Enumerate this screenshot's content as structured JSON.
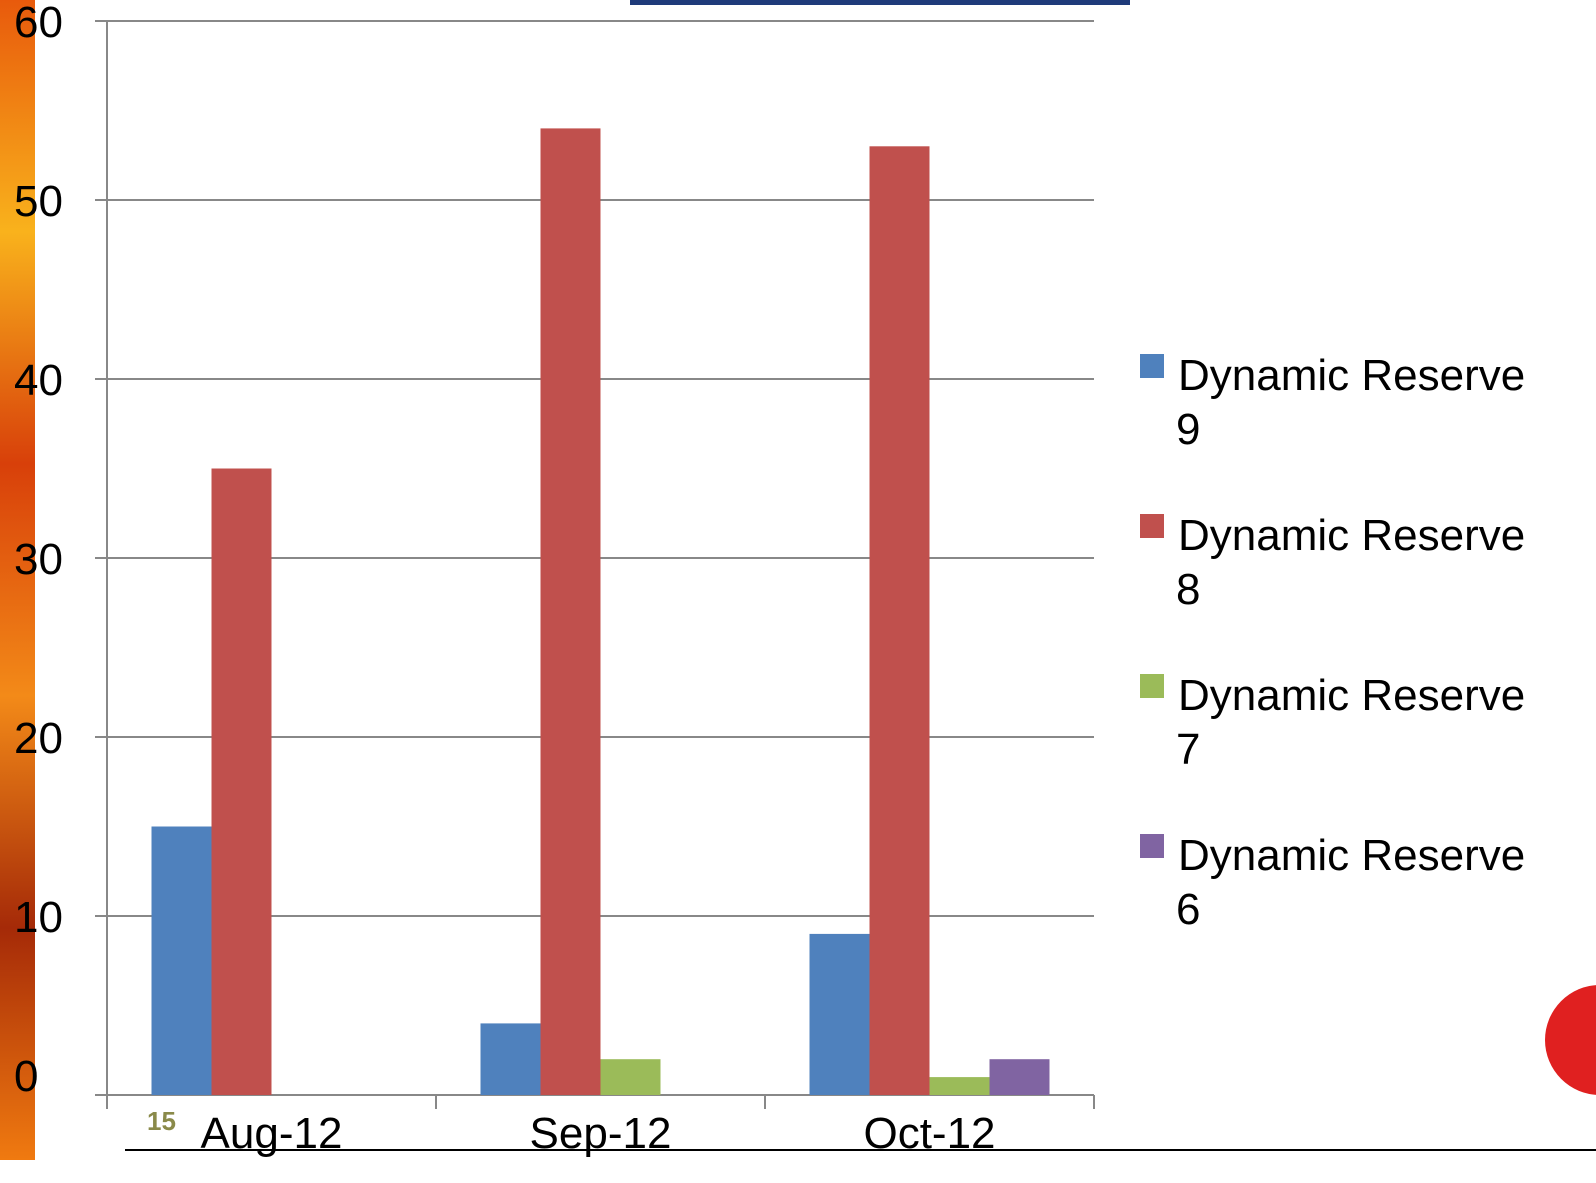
{
  "slide_number": "15",
  "chart_data": {
    "type": "bar",
    "categories": [
      "Aug-12",
      "Sep-12",
      "Oct-12"
    ],
    "series": [
      {
        "name": "Dynamic Reserve 9",
        "color": "#4f81bd",
        "values": [
          15,
          4,
          9
        ]
      },
      {
        "name": "Dynamic Reserve 8",
        "color": "#c0504d",
        "values": [
          35,
          54,
          53
        ]
      },
      {
        "name": "Dynamic Reserve 7",
        "color": "#9bbb59",
        "values": [
          0,
          2,
          1
        ]
      },
      {
        "name": "Dynamic Reserve 6",
        "color": "#8064a2",
        "values": [
          0,
          0,
          2
        ]
      }
    ],
    "ylim": [
      0,
      60
    ],
    "yticks": [
      0,
      10,
      20,
      30,
      40,
      50,
      60
    ],
    "grid": true,
    "legend": "right"
  }
}
